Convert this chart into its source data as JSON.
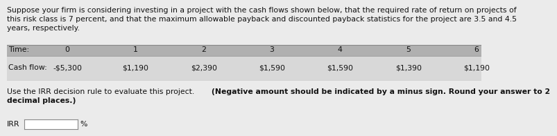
{
  "bg_color": "#e8e8e8",
  "page_bg": "#ebebeb",
  "paragraph1_line1": "Suppose your firm is considering investing in a project with the cash flows shown below, that the required rate of return on projects of",
  "paragraph1_line2": "this risk class is 7 percent, and that the maximum allowable payback and discounted payback statistics for the project are 3.5 and 4.5",
  "paragraph1_line3": "years, respectively.",
  "table_header_bg": "#b0b0b0",
  "table_row_bg": "#d8d8d8",
  "table_label1": "Time:",
  "table_label2": "Cash flow:",
  "time_values": [
    "0",
    "1",
    "2",
    "3",
    "4",
    "5",
    "6"
  ],
  "cash_flows": [
    "-$5,300",
    "$1,190",
    "$2,390",
    "$1,590",
    "$1,590",
    "$1,390",
    "$1,190"
  ],
  "paragraph2_normal": "Use the IRR decision rule to evaluate this project. ",
  "paragraph2_bold": "(Negative amount should be indicated by a minus sign. Round your answer to 2",
  "paragraph2_bold2": "decimal places.)",
  "irr_label": "IRR",
  "irr_suffix": "%",
  "input_box_color": "#ffffff",
  "input_box_border": "#888888",
  "text_color": "#111111",
  "font_size_para": 7.8,
  "font_size_table": 7.8,
  "font_size_irr": 7.8
}
